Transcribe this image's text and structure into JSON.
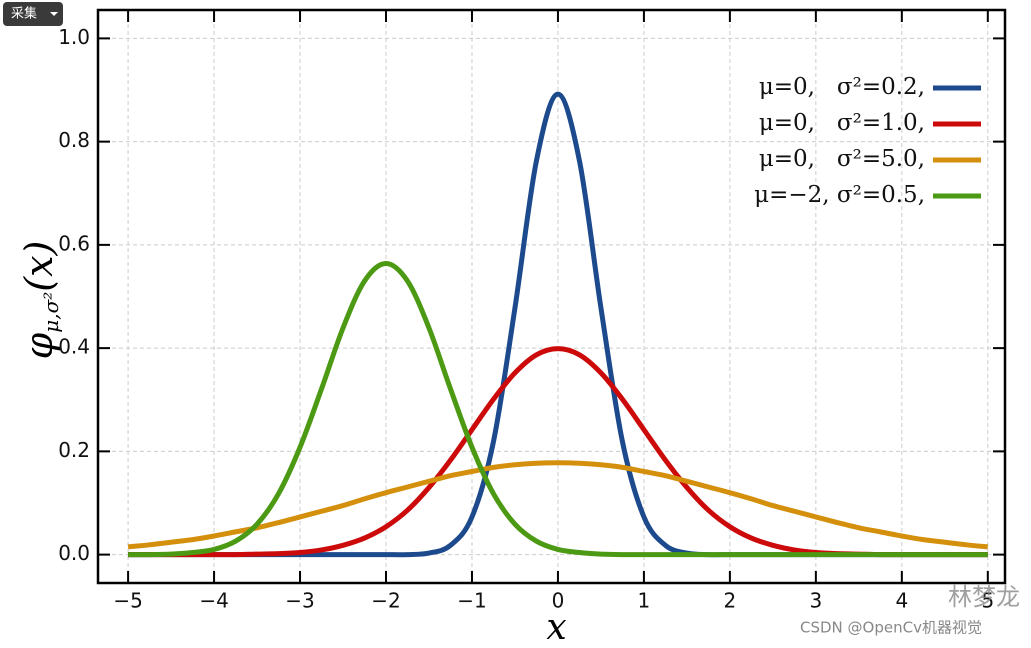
{
  "toolbar_button": "采集",
  "watermarks": [
    "林梦龙",
    "CSDN @OpenCv机器视觉"
  ],
  "chart_data": {
    "type": "line",
    "xlabel": "x",
    "ylabel": {
      "symbol": "φ",
      "subscript": "μ,σ²",
      "argument": "(x)"
    },
    "x": [
      -5,
      -4.75,
      -4.5,
      -4.25,
      -4,
      -3.75,
      -3.5,
      -3.25,
      -3,
      -2.75,
      -2.5,
      -2.25,
      -2,
      -1.75,
      -1.5,
      -1.25,
      -1,
      -0.75,
      -0.5,
      -0.25,
      0,
      0.25,
      0.5,
      0.75,
      1,
      1.25,
      1.5,
      1.75,
      2,
      2.25,
      2.5,
      2.75,
      3,
      3.25,
      3.5,
      3.75,
      4,
      4.25,
      4.5,
      4.75,
      5
    ],
    "series": [
      {
        "name": "μ=0,   σ²=0.2,",
        "color": "#1d4a8c",
        "values": [
          0,
          0,
          0,
          0,
          0,
          0,
          0,
          0,
          0,
          0,
          0,
          0,
          0,
          0,
          0.003,
          0.018,
          0.073,
          0.219,
          0.478,
          0.763,
          0.892,
          0.763,
          0.478,
          0.219,
          0.073,
          0.018,
          0.003,
          0,
          0,
          0,
          0,
          0,
          0,
          0,
          0,
          0,
          0,
          0,
          0,
          0,
          0
        ]
      },
      {
        "name": "μ=0,   σ²=1.0,",
        "color": "#cc0a0a",
        "values": [
          0,
          0,
          0,
          0,
          0,
          0,
          0.001,
          0.002,
          0.004,
          0.009,
          0.018,
          0.032,
          0.054,
          0.086,
          0.13,
          0.183,
          0.242,
          0.301,
          0.352,
          0.387,
          0.399,
          0.387,
          0.352,
          0.301,
          0.242,
          0.183,
          0.13,
          0.086,
          0.054,
          0.032,
          0.018,
          0.009,
          0.004,
          0.002,
          0.001,
          0,
          0,
          0,
          0,
          0,
          0
        ]
      },
      {
        "name": "μ=0,   σ²=5.0,",
        "color": "#d4900c",
        "values": [
          0.015,
          0.019,
          0.024,
          0.029,
          0.036,
          0.044,
          0.052,
          0.062,
          0.073,
          0.084,
          0.095,
          0.108,
          0.12,
          0.131,
          0.142,
          0.153,
          0.161,
          0.169,
          0.174,
          0.177,
          0.178,
          0.177,
          0.174,
          0.169,
          0.161,
          0.153,
          0.142,
          0.131,
          0.12,
          0.108,
          0.095,
          0.084,
          0.073,
          0.062,
          0.052,
          0.044,
          0.036,
          0.029,
          0.024,
          0.019,
          0.015
        ]
      },
      {
        "name": "μ=−2, σ²=0.5,",
        "color": "#4c9a14",
        "values": [
          0,
          0,
          0.001,
          0.004,
          0.01,
          0.026,
          0.059,
          0.118,
          0.208,
          0.321,
          0.439,
          0.53,
          0.564,
          0.53,
          0.439,
          0.321,
          0.208,
          0.118,
          0.059,
          0.026,
          0.01,
          0.004,
          0.001,
          0,
          0,
          0,
          0,
          0,
          0,
          0,
          0,
          0,
          0,
          0,
          0,
          0,
          0,
          0,
          0,
          0,
          0
        ]
      }
    ],
    "xlim": [
      -5.35,
      5.2
    ],
    "ylim": [
      -0.055,
      1.055
    ],
    "xticks": [
      {
        "value": -5,
        "label": "−5"
      },
      {
        "value": -4,
        "label": "−4"
      },
      {
        "value": -3,
        "label": "−3"
      },
      {
        "value": -2,
        "label": "−2"
      },
      {
        "value": -1,
        "label": "−1"
      },
      0,
      1,
      2,
      3,
      4,
      5
    ],
    "yticks": [
      {
        "value": 0,
        "label": "0.0"
      },
      0.2,
      0.4,
      0.6,
      0.8,
      {
        "value": 1,
        "label": "1.0"
      }
    ],
    "grid": true,
    "legend": "upper right"
  }
}
